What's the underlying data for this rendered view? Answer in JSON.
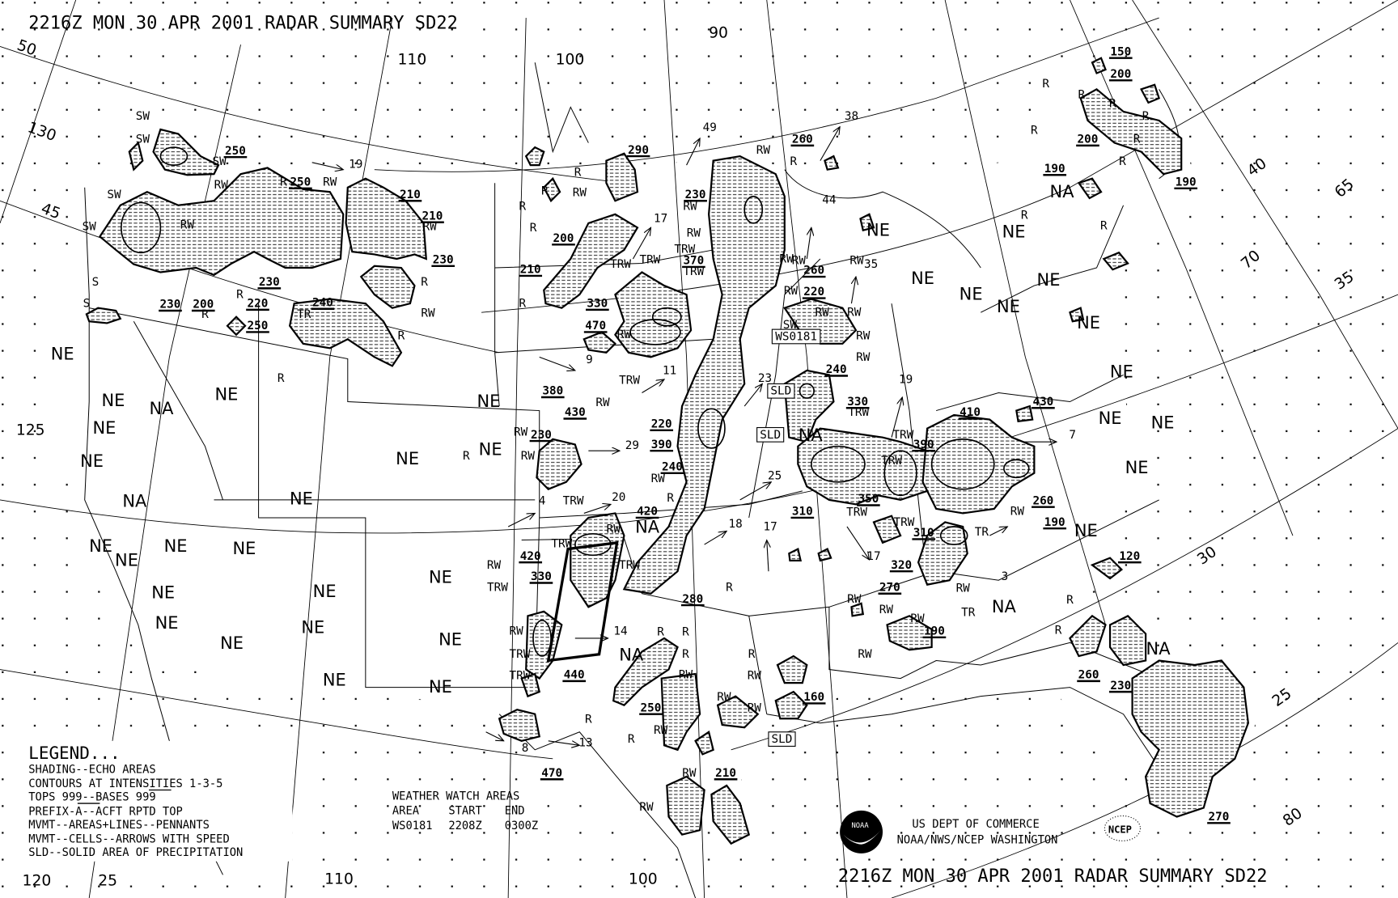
{
  "title_top": "2216Z MON 30 APR 2001 RADAR SUMMARY SD22",
  "title_bottom": "2216Z MON 30 APR 2001 RADAR SUMMARY SD22",
  "legend": {
    "heading": "LEGEND...",
    "lines": [
      "SHADING--ECHO AREAS",
      "CONTOURS AT INTENSITIES 1-3-5",
      "TOPS 999--BASES 999",
      "PREFIX-A--ACFT RPTD TOP",
      "MVMT--AREAS+LINES--PENNANTS",
      "MVMT--CELLS--ARROWS WITH SPEED",
      "SLD--SOLID AREA OF PRECIPITATION"
    ]
  },
  "watch_areas": {
    "heading": "WEATHER WATCH AREAS",
    "columns": [
      "AREA",
      "START",
      "END"
    ],
    "rows": [
      [
        "WS0181",
        "2208Z",
        "0300Z"
      ]
    ]
  },
  "agency": {
    "line1": "US DEPT OF COMMERCE",
    "line2": "NOAA/NWS/NCEP WASHINGTON",
    "noaa_logo_text": "NOAA",
    "ncep_logo_text": "NCEP"
  },
  "map_labels": {
    "graticule": [
      "50",
      "130",
      "45",
      "125",
      "120",
      "25",
      "110",
      "100",
      "110",
      "100",
      "90",
      "40",
      "65",
      "70",
      "35",
      "30",
      "25",
      "80"
    ],
    "coverage": [
      "NE",
      "NE",
      "NA",
      "NE",
      "NE",
      "NE",
      "NA",
      "NE",
      "NE",
      "NE",
      "NE",
      "NE",
      "NE",
      "NE",
      "NE",
      "NE",
      "NE",
      "NE",
      "NE",
      "NE",
      "NE",
      "NE",
      "NE",
      "NE",
      "NA",
      "NA",
      "NA",
      "NA",
      "NA",
      "NE",
      "NE",
      "NE",
      "NE",
      "NE",
      "NE",
      "NE",
      "NE",
      "NE",
      "NE",
      "NE",
      "NE",
      "NA"
    ],
    "tops": [
      "250",
      "250",
      "210",
      "210",
      "230",
      "230",
      "230",
      "200",
      "220",
      "240",
      "250",
      "290",
      "230",
      "200",
      "210",
      "370",
      "330",
      "470",
      "380",
      "430",
      "220",
      "390",
      "240",
      "230",
      "420",
      "420",
      "330",
      "440",
      "250",
      "280",
      "160",
      "210",
      "470",
      "260",
      "260",
      "220",
      "240",
      "330",
      "350",
      "310",
      "310",
      "320",
      "270",
      "190",
      "410",
      "390",
      "430",
      "260",
      "190",
      "120",
      "260",
      "230",
      "270",
      "150",
      "200",
      "200",
      "190",
      "190"
    ],
    "precip": [
      "SW",
      "SW",
      "SW",
      "SW",
      "SW",
      "RW",
      "R",
      "RW",
      "RW",
      "RW",
      "R",
      "RW",
      "R",
      "S",
      "S",
      "R",
      "R",
      "TR",
      "R",
      "R",
      "RW",
      "RW",
      "R",
      "R",
      "RW",
      "R",
      "R",
      "R",
      "RW",
      "R",
      "RW",
      "RW",
      "TRW",
      "TRW",
      "TRW",
      "TRW",
      "RW",
      "TRW",
      "RW",
      "RW",
      "RW",
      "RW",
      "RW",
      "RW",
      "SW",
      "RW",
      "RW",
      "RW",
      "RW",
      "R",
      "TRW",
      "RW",
      "TRW",
      "RW",
      "TRW",
      "TRW",
      "RW",
      "TRW",
      "TRW",
      "R",
      "R",
      "R",
      "R",
      "R",
      "RW",
      "RW",
      "RW",
      "RW",
      "RW",
      "RW",
      "R",
      "R",
      "RW",
      "RW",
      "RW",
      "RW",
      "RW",
      "TRW",
      "TRW",
      "TRW",
      "TRW",
      "TRW",
      "RW",
      "TR",
      "TR",
      "RW",
      "R",
      "R",
      "R",
      "R",
      "R",
      "R",
      "R",
      "R",
      "R",
      "R",
      "R"
    ],
    "speeds": [
      "19",
      "49",
      "38",
      "44",
      "35",
      "17",
      "9",
      "11",
      "23",
      "29",
      "20",
      "4",
      "25",
      "18",
      "17",
      "17",
      "14",
      "19",
      "7",
      "3",
      "13",
      "8"
    ],
    "boxed": [
      "WS0181",
      "SLD",
      "SLD",
      "SLD"
    ]
  }
}
